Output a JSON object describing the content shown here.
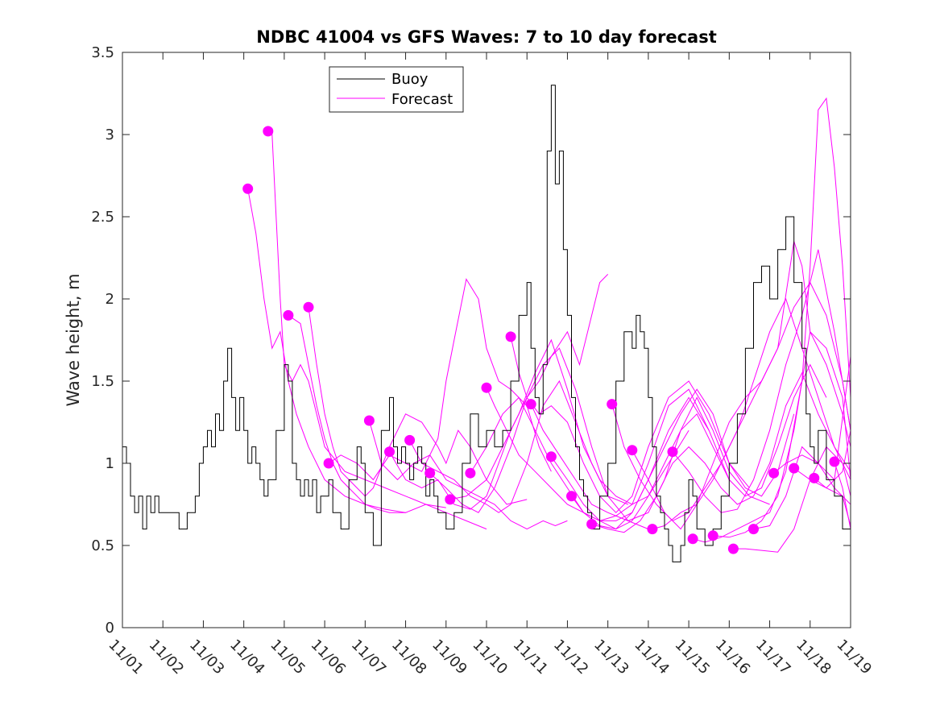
{
  "chart_data": {
    "type": "line",
    "title": "NDBC 41004 vs GFS Waves: 7 to 10 day forecast",
    "xlabel": "",
    "ylabel": "Wave height, m",
    "xlim": [
      0,
      18
    ],
    "ylim": [
      0,
      3.5
    ],
    "x_ticks": [
      0,
      1,
      2,
      3,
      4,
      5,
      6,
      7,
      8,
      9,
      10,
      11,
      12,
      13,
      14,
      15,
      16,
      17,
      18
    ],
    "x_tick_labels": [
      "11/01",
      "11/02",
      "11/03",
      "11/04",
      "11/05",
      "11/06",
      "11/07",
      "11/08",
      "11/09",
      "11/10",
      "11/11",
      "11/12",
      "11/13",
      "11/14",
      "11/15",
      "11/16",
      "11/17",
      "11/18",
      "11/19"
    ],
    "y_ticks": [
      0,
      0.5,
      1,
      1.5,
      2,
      2.5,
      3,
      3.5
    ],
    "y_tick_labels": [
      "0",
      "0.5",
      "1",
      "1.5",
      "2",
      "2.5",
      "3",
      "3.5"
    ],
    "legend": {
      "position": "top-left",
      "entries": [
        "Buoy",
        "Forecast"
      ]
    },
    "colors": {
      "buoy": "#000000",
      "forecast": "#ff00ff",
      "axis": "#262626"
    },
    "buoy": {
      "name": "Buoy",
      "x": [
        0,
        0.1,
        0.2,
        0.3,
        0.4,
        0.5,
        0.6,
        0.7,
        0.8,
        0.9,
        1.0,
        1.2,
        1.4,
        1.6,
        1.8,
        1.9,
        2.0,
        2.1,
        2.2,
        2.3,
        2.4,
        2.5,
        2.6,
        2.7,
        2.8,
        2.9,
        3.0,
        3.1,
        3.2,
        3.3,
        3.4,
        3.5,
        3.6,
        3.8,
        4.0,
        4.1,
        4.2,
        4.3,
        4.4,
        4.5,
        4.6,
        4.7,
        4.8,
        4.9,
        5.0,
        5.1,
        5.2,
        5.4,
        5.6,
        5.8,
        5.9,
        6.0,
        6.2,
        6.4,
        6.6,
        6.7,
        6.8,
        6.9,
        7.0,
        7.1,
        7.2,
        7.3,
        7.4,
        7.5,
        7.6,
        7.7,
        7.8,
        8.0,
        8.2,
        8.4,
        8.6,
        8.8,
        9.0,
        9.2,
        9.4,
        9.6,
        9.8,
        10.0,
        10.1,
        10.2,
        10.3,
        10.4,
        10.5,
        10.6,
        10.7,
        10.8,
        10.9,
        11.0,
        11.1,
        11.2,
        11.3,
        11.4,
        11.5,
        11.6,
        11.8,
        12.0,
        12.2,
        12.4,
        12.6,
        12.7,
        12.8,
        12.9,
        13.0,
        13.1,
        13.2,
        13.3,
        13.4,
        13.5,
        13.6,
        13.7,
        13.8,
        13.9,
        14.0,
        14.1,
        14.2,
        14.4,
        14.6,
        14.8,
        15.0,
        15.2,
        15.4,
        15.6,
        15.8,
        16.0,
        16.2,
        16.4,
        16.6,
        16.8,
        16.9,
        17.0,
        17.1,
        17.2,
        17.4,
        17.6,
        17.8,
        17.9,
        18.0
      ],
      "y": [
        1.1,
        1.0,
        0.8,
        0.7,
        0.8,
        0.6,
        0.8,
        0.7,
        0.8,
        0.7,
        0.7,
        0.7,
        0.6,
        0.7,
        0.8,
        1.0,
        1.1,
        1.2,
        1.1,
        1.3,
        1.2,
        1.5,
        1.7,
        1.4,
        1.2,
        1.4,
        1.2,
        1.0,
        1.1,
        1.0,
        0.9,
        0.8,
        0.9,
        1.2,
        1.6,
        1.5,
        1.0,
        0.9,
        0.8,
        0.9,
        0.8,
        0.9,
        0.7,
        0.8,
        0.8,
        0.9,
        0.7,
        0.6,
        0.9,
        1.1,
        1.0,
        0.7,
        0.5,
        1.2,
        1.4,
        1.1,
        1.0,
        1.1,
        1.0,
        0.9,
        1.0,
        1.1,
        1.0,
        0.8,
        0.9,
        0.8,
        0.7,
        0.6,
        0.7,
        1.0,
        1.3,
        1.1,
        1.2,
        1.1,
        1.2,
        1.5,
        1.9,
        2.1,
        1.7,
        1.4,
        1.3,
        1.6,
        2.9,
        3.3,
        2.7,
        2.9,
        2.3,
        1.9,
        1.4,
        1.1,
        0.9,
        0.8,
        0.7,
        0.6,
        0.8,
        1.0,
        1.5,
        1.8,
        1.7,
        1.9,
        1.8,
        1.7,
        1.4,
        1.1,
        0.8,
        0.7,
        0.6,
        0.5,
        0.4,
        0.4,
        0.5,
        0.7,
        0.9,
        0.8,
        0.6,
        0.5,
        0.6,
        0.8,
        1.0,
        1.3,
        1.7,
        2.1,
        2.2,
        2.0,
        2.3,
        2.5,
        2.1,
        1.7,
        1.3,
        1.1,
        1.0,
        1.2,
        0.9,
        0.8,
        0.6,
        0.6,
        0.6
      ]
    },
    "forecast_series": [
      {
        "name": "Forecast",
        "x": [
          3.1,
          3.3,
          3.5,
          3.7,
          3.9,
          4.1,
          4.3,
          4.6,
          5.0,
          5.5,
          6.0,
          6.5,
          7.0
        ],
        "y": [
          2.67,
          2.4,
          2.0,
          1.7,
          1.8,
          1.5,
          1.3,
          1.1,
          0.9,
          0.8,
          0.75,
          0.72,
          0.7
        ]
      },
      {
        "name": "Forecast",
        "x": [
          3.6,
          3.7,
          3.8,
          3.9,
          4.0,
          4.2,
          4.4,
          4.6,
          4.8,
          5.0,
          5.5,
          6.0,
          6.5,
          7.0,
          7.5,
          8.0
        ],
        "y": [
          3.02,
          3.0,
          2.5,
          2.0,
          1.6,
          1.5,
          1.6,
          1.5,
          1.3,
          1.1,
          0.95,
          0.9,
          0.85,
          0.8,
          0.75,
          0.73
        ]
      },
      {
        "name": "Forecast",
        "x": [
          4.1,
          4.4,
          4.6,
          4.8,
          5.0,
          5.2,
          5.4,
          5.6,
          5.8,
          6.0,
          6.3,
          6.6,
          7.0,
          7.5,
          8.0,
          8.5,
          9.0
        ],
        "y": [
          1.9,
          1.85,
          1.6,
          1.35,
          1.15,
          1.0,
          0.9,
          0.85,
          0.8,
          0.75,
          0.72,
          0.7,
          0.7,
          0.75,
          0.7,
          0.65,
          0.6
        ]
      },
      {
        "name": "Forecast",
        "x": [
          4.6,
          4.8,
          5.0,
          5.2,
          5.4,
          5.6,
          5.8,
          6.0,
          6.2,
          6.6,
          7.0,
          7.4,
          7.8,
          8.0,
          8.3,
          8.6,
          9.0,
          9.5,
          10.0
        ],
        "y": [
          1.95,
          1.6,
          1.3,
          1.1,
          0.95,
          0.9,
          0.85,
          0.8,
          0.85,
          1.1,
          1.3,
          1.25,
          1.1,
          1.0,
          1.2,
          1.1,
          0.9,
          0.75,
          0.78
        ]
      },
      {
        "name": "Forecast",
        "x": [
          5.1,
          5.4,
          5.8,
          6.2,
          6.6,
          7.0,
          7.4,
          7.8,
          8.0,
          8.2,
          8.5,
          8.8,
          9.0,
          9.3,
          9.6,
          10.0,
          10.3,
          10.6
        ],
        "y": [
          1.0,
          1.05,
          1.0,
          0.9,
          1.05,
          1.0,
          0.95,
          1.15,
          1.5,
          1.75,
          2.12,
          2.0,
          1.7,
          1.5,
          1.45,
          1.35,
          1.1,
          0.95
        ]
      },
      {
        "name": "Forecast",
        "x": [
          6.1,
          6.4,
          6.8,
          7.2,
          7.6,
          8.0,
          8.4,
          8.8,
          9.2,
          9.6,
          10.0,
          10.4,
          10.7,
          11.0
        ],
        "y": [
          1.26,
          1.0,
          0.9,
          1.0,
          1.05,
          0.9,
          0.85,
          0.8,
          0.75,
          0.65,
          0.6,
          0.65,
          0.62,
          0.65
        ]
      },
      {
        "name": "Forecast",
        "x": [
          6.6,
          7.0,
          7.4,
          7.8,
          8.2,
          8.6,
          9.0,
          9.3,
          9.6,
          10.0,
          10.3,
          10.6,
          11.0,
          11.3,
          11.6,
          11.8,
          12.0
        ],
        "y": [
          1.07,
          0.9,
          0.85,
          0.9,
          0.75,
          0.72,
          0.8,
          1.0,
          1.2,
          1.4,
          1.5,
          1.65,
          1.8,
          1.6,
          1.9,
          2.1,
          2.15
        ]
      },
      {
        "name": "Forecast",
        "x": [
          7.1,
          7.4,
          7.8,
          8.2,
          8.6,
          9.0,
          9.3,
          9.6,
          10.0,
          10.4,
          10.8,
          11.2,
          11.6,
          12.0,
          12.5
        ],
        "y": [
          1.14,
          1.0,
          0.95,
          0.9,
          0.8,
          0.75,
          0.7,
          0.75,
          1.0,
          1.35,
          1.5,
          1.25,
          1.0,
          0.8,
          0.75
        ]
      },
      {
        "name": "Forecast",
        "x": [
          7.6,
          8.0,
          8.4,
          8.8,
          9.2,
          9.6,
          10.0,
          10.4,
          10.8,
          11.2,
          11.6,
          12.0,
          12.5,
          13.0
        ],
        "y": [
          0.94,
          0.85,
          0.75,
          0.7,
          0.85,
          1.1,
          1.4,
          1.6,
          1.7,
          1.45,
          1.1,
          0.8,
          0.65,
          0.6
        ]
      },
      {
        "name": "Forecast",
        "x": [
          8.1,
          8.5,
          9.0,
          9.4,
          9.8,
          10.2,
          10.6,
          11.0,
          11.4,
          11.8,
          12.2,
          12.6,
          13.0,
          13.5,
          14.0
        ],
        "y": [
          0.78,
          0.8,
          0.9,
          1.1,
          1.3,
          1.55,
          1.75,
          1.45,
          1.1,
          0.9,
          0.8,
          0.75,
          0.8,
          1.0,
          1.2
        ]
      },
      {
        "name": "Forecast",
        "x": [
          8.6,
          9.0,
          9.4,
          9.8,
          10.2,
          10.6,
          11.0,
          11.4,
          11.8,
          12.2,
          12.6,
          13.0,
          13.5,
          14.0,
          14.5
        ],
        "y": [
          0.94,
          1.1,
          1.3,
          1.4,
          1.2,
          1.0,
          0.85,
          0.7,
          0.65,
          0.65,
          0.7,
          0.9,
          1.2,
          1.4,
          1.2
        ]
      },
      {
        "name": "Forecast",
        "x": [
          9.0,
          9.2,
          9.5,
          9.8,
          10.2,
          10.6,
          11.0,
          11.4,
          11.8,
          12.2,
          12.6,
          13.0,
          13.5,
          14.0,
          14.5,
          15.0
        ],
        "y": [
          1.46,
          1.35,
          1.2,
          1.05,
          0.95,
          0.85,
          0.75,
          0.7,
          0.65,
          0.68,
          0.75,
          1.0,
          1.35,
          1.45,
          1.2,
          0.9
        ]
      },
      {
        "name": "Forecast",
        "x": [
          9.6,
          9.8,
          10.0,
          10.3,
          10.6,
          11.0,
          11.4,
          11.8,
          12.2,
          12.6,
          13.0,
          13.5,
          14.0,
          14.5,
          15.0,
          15.5
        ],
        "y": [
          1.77,
          1.55,
          1.4,
          1.3,
          1.35,
          1.25,
          1.0,
          0.8,
          0.7,
          0.8,
          1.1,
          1.4,
          1.5,
          1.3,
          1.0,
          0.85
        ]
      },
      {
        "name": "Forecast",
        "x": [
          10.1,
          10.4,
          10.8,
          11.2,
          11.6,
          12.0,
          12.5,
          13.0,
          13.4,
          13.8,
          14.2,
          14.6,
          15.0,
          15.5,
          16.0
        ],
        "y": [
          1.36,
          1.2,
          1.05,
          0.9,
          0.75,
          0.7,
          0.65,
          0.7,
          0.9,
          1.2,
          1.4,
          1.2,
          0.95,
          0.8,
          0.75
        ]
      },
      {
        "name": "Forecast",
        "x": [
          10.6,
          11.0,
          11.4,
          11.8,
          12.2,
          12.6,
          13.0,
          13.4,
          13.8,
          14.2,
          14.6,
          15.0,
          15.4,
          15.8,
          16.2,
          16.6
        ],
        "y": [
          1.04,
          0.9,
          0.75,
          0.65,
          0.6,
          0.7,
          0.9,
          1.1,
          1.3,
          1.45,
          1.3,
          1.0,
          0.85,
          0.8,
          0.95,
          1.3
        ]
      },
      {
        "name": "Forecast",
        "x": [
          11.1,
          11.4,
          11.8,
          12.2,
          12.6,
          13.0,
          13.4,
          13.8,
          14.2,
          14.6,
          15.0,
          15.4,
          15.8,
          16.2,
          16.6,
          17.0,
          17.4
        ],
        "y": [
          0.8,
          0.7,
          0.62,
          0.6,
          0.65,
          0.8,
          1.0,
          1.2,
          1.3,
          1.1,
          0.9,
          0.8,
          0.85,
          1.1,
          1.4,
          1.6,
          1.4
        ]
      },
      {
        "name": "Forecast",
        "x": [
          11.6,
          12.0,
          12.4,
          12.8,
          13.2,
          13.6,
          14.0,
          14.4,
          14.8,
          15.2,
          15.6,
          16.0,
          16.4,
          16.8,
          17.2,
          17.6,
          18.0
        ],
        "y": [
          0.63,
          0.6,
          0.58,
          0.65,
          0.8,
          1.0,
          1.1,
          1.0,
          0.85,
          0.75,
          0.8,
          1.0,
          1.35,
          1.55,
          1.3,
          1.1,
          0.95
        ]
      },
      {
        "name": "Forecast",
        "x": [
          12.1,
          12.4,
          12.8,
          13.2,
          13.6,
          14.0,
          14.4,
          14.8,
          15.2,
          15.6,
          16.0,
          16.4,
          16.8,
          17.2,
          17.6,
          18.0
        ],
        "y": [
          1.36,
          1.1,
          0.9,
          0.75,
          0.65,
          0.7,
          0.85,
          1.0,
          1.2,
          1.5,
          1.8,
          2.0,
          1.7,
          1.4,
          1.1,
          0.9
        ]
      },
      {
        "name": "Forecast",
        "x": [
          12.6,
          13.0,
          13.4,
          13.8,
          14.2,
          14.6,
          15.0,
          15.4,
          15.8,
          16.2,
          16.6,
          16.8,
          17.0,
          17.4,
          17.8,
          18.0
        ],
        "y": [
          1.08,
          0.9,
          0.7,
          0.6,
          0.75,
          1.0,
          1.25,
          1.4,
          1.5,
          1.7,
          2.35,
          2.2,
          1.8,
          1.6,
          1.3,
          1.1
        ]
      },
      {
        "name": "Forecast",
        "x": [
          13.1,
          13.4,
          13.8,
          14.2,
          14.6,
          15.0,
          15.4,
          15.8,
          16.2,
          16.6,
          17.0,
          17.4,
          17.8,
          18.0
        ],
        "y": [
          0.6,
          0.62,
          0.7,
          0.75,
          0.9,
          1.1,
          1.3,
          1.5,
          1.7,
          1.95,
          2.1,
          1.9,
          1.5,
          1.2
        ]
      },
      {
        "name": "Forecast",
        "x": [
          13.6,
          14.0,
          14.4,
          14.8,
          15.2,
          15.6,
          16.0,
          16.4,
          16.8,
          17.2,
          17.6,
          18.0
        ],
        "y": [
          1.07,
          0.95,
          0.8,
          0.7,
          0.72,
          0.9,
          1.2,
          1.6,
          1.9,
          2.3,
          1.8,
          1.2
        ]
      },
      {
        "name": "Forecast",
        "x": [
          14.1,
          14.4,
          14.8,
          15.2,
          15.6,
          16.0,
          16.4,
          16.8,
          17.0,
          17.2,
          17.4,
          17.6,
          17.8,
          18.0
        ],
        "y": [
          0.54,
          0.52,
          0.55,
          0.6,
          0.65,
          0.7,
          0.95,
          1.5,
          2.2,
          3.15,
          3.22,
          2.8,
          2.2,
          1.4
        ]
      },
      {
        "name": "Forecast",
        "x": [
          14.6,
          15.0,
          15.4,
          15.8,
          16.2,
          16.6,
          17.0,
          17.4,
          17.8,
          18.0
        ],
        "y": [
          0.56,
          0.55,
          0.58,
          0.65,
          0.8,
          1.2,
          1.8,
          1.7,
          1.4,
          0.9
        ]
      },
      {
        "name": "Forecast",
        "x": [
          15.1,
          15.4,
          15.8,
          16.2,
          16.6,
          17.0,
          17.4,
          17.8,
          18.0
        ],
        "y": [
          0.48,
          0.48,
          0.47,
          0.46,
          0.6,
          0.9,
          1.1,
          1.0,
          0.8
        ]
      },
      {
        "name": "Forecast",
        "x": [
          15.6,
          16.0,
          16.4,
          16.8,
          17.2,
          17.6,
          18.0
        ],
        "y": [
          0.6,
          0.62,
          0.8,
          1.1,
          1.0,
          0.85,
          0.75
        ]
      },
      {
        "name": "Forecast",
        "x": [
          16.1,
          16.4,
          16.8,
          17.2,
          17.6,
          18.0
        ],
        "y": [
          0.94,
          1.0,
          1.05,
          1.0,
          0.9,
          1.65
        ]
      },
      {
        "name": "Forecast",
        "x": [
          16.6,
          17.0,
          17.4,
          17.8,
          18.0
        ],
        "y": [
          0.97,
          0.9,
          0.85,
          0.95,
          1.2
        ]
      },
      {
        "name": "Forecast",
        "x": [
          17.1,
          17.4,
          17.8,
          18.0
        ],
        "y": [
          0.91,
          0.85,
          0.8,
          0.62
        ]
      },
      {
        "name": "Forecast",
        "x": [
          17.6,
          17.8,
          18.0
        ],
        "y": [
          1.01,
          0.85,
          0.6
        ]
      }
    ]
  }
}
